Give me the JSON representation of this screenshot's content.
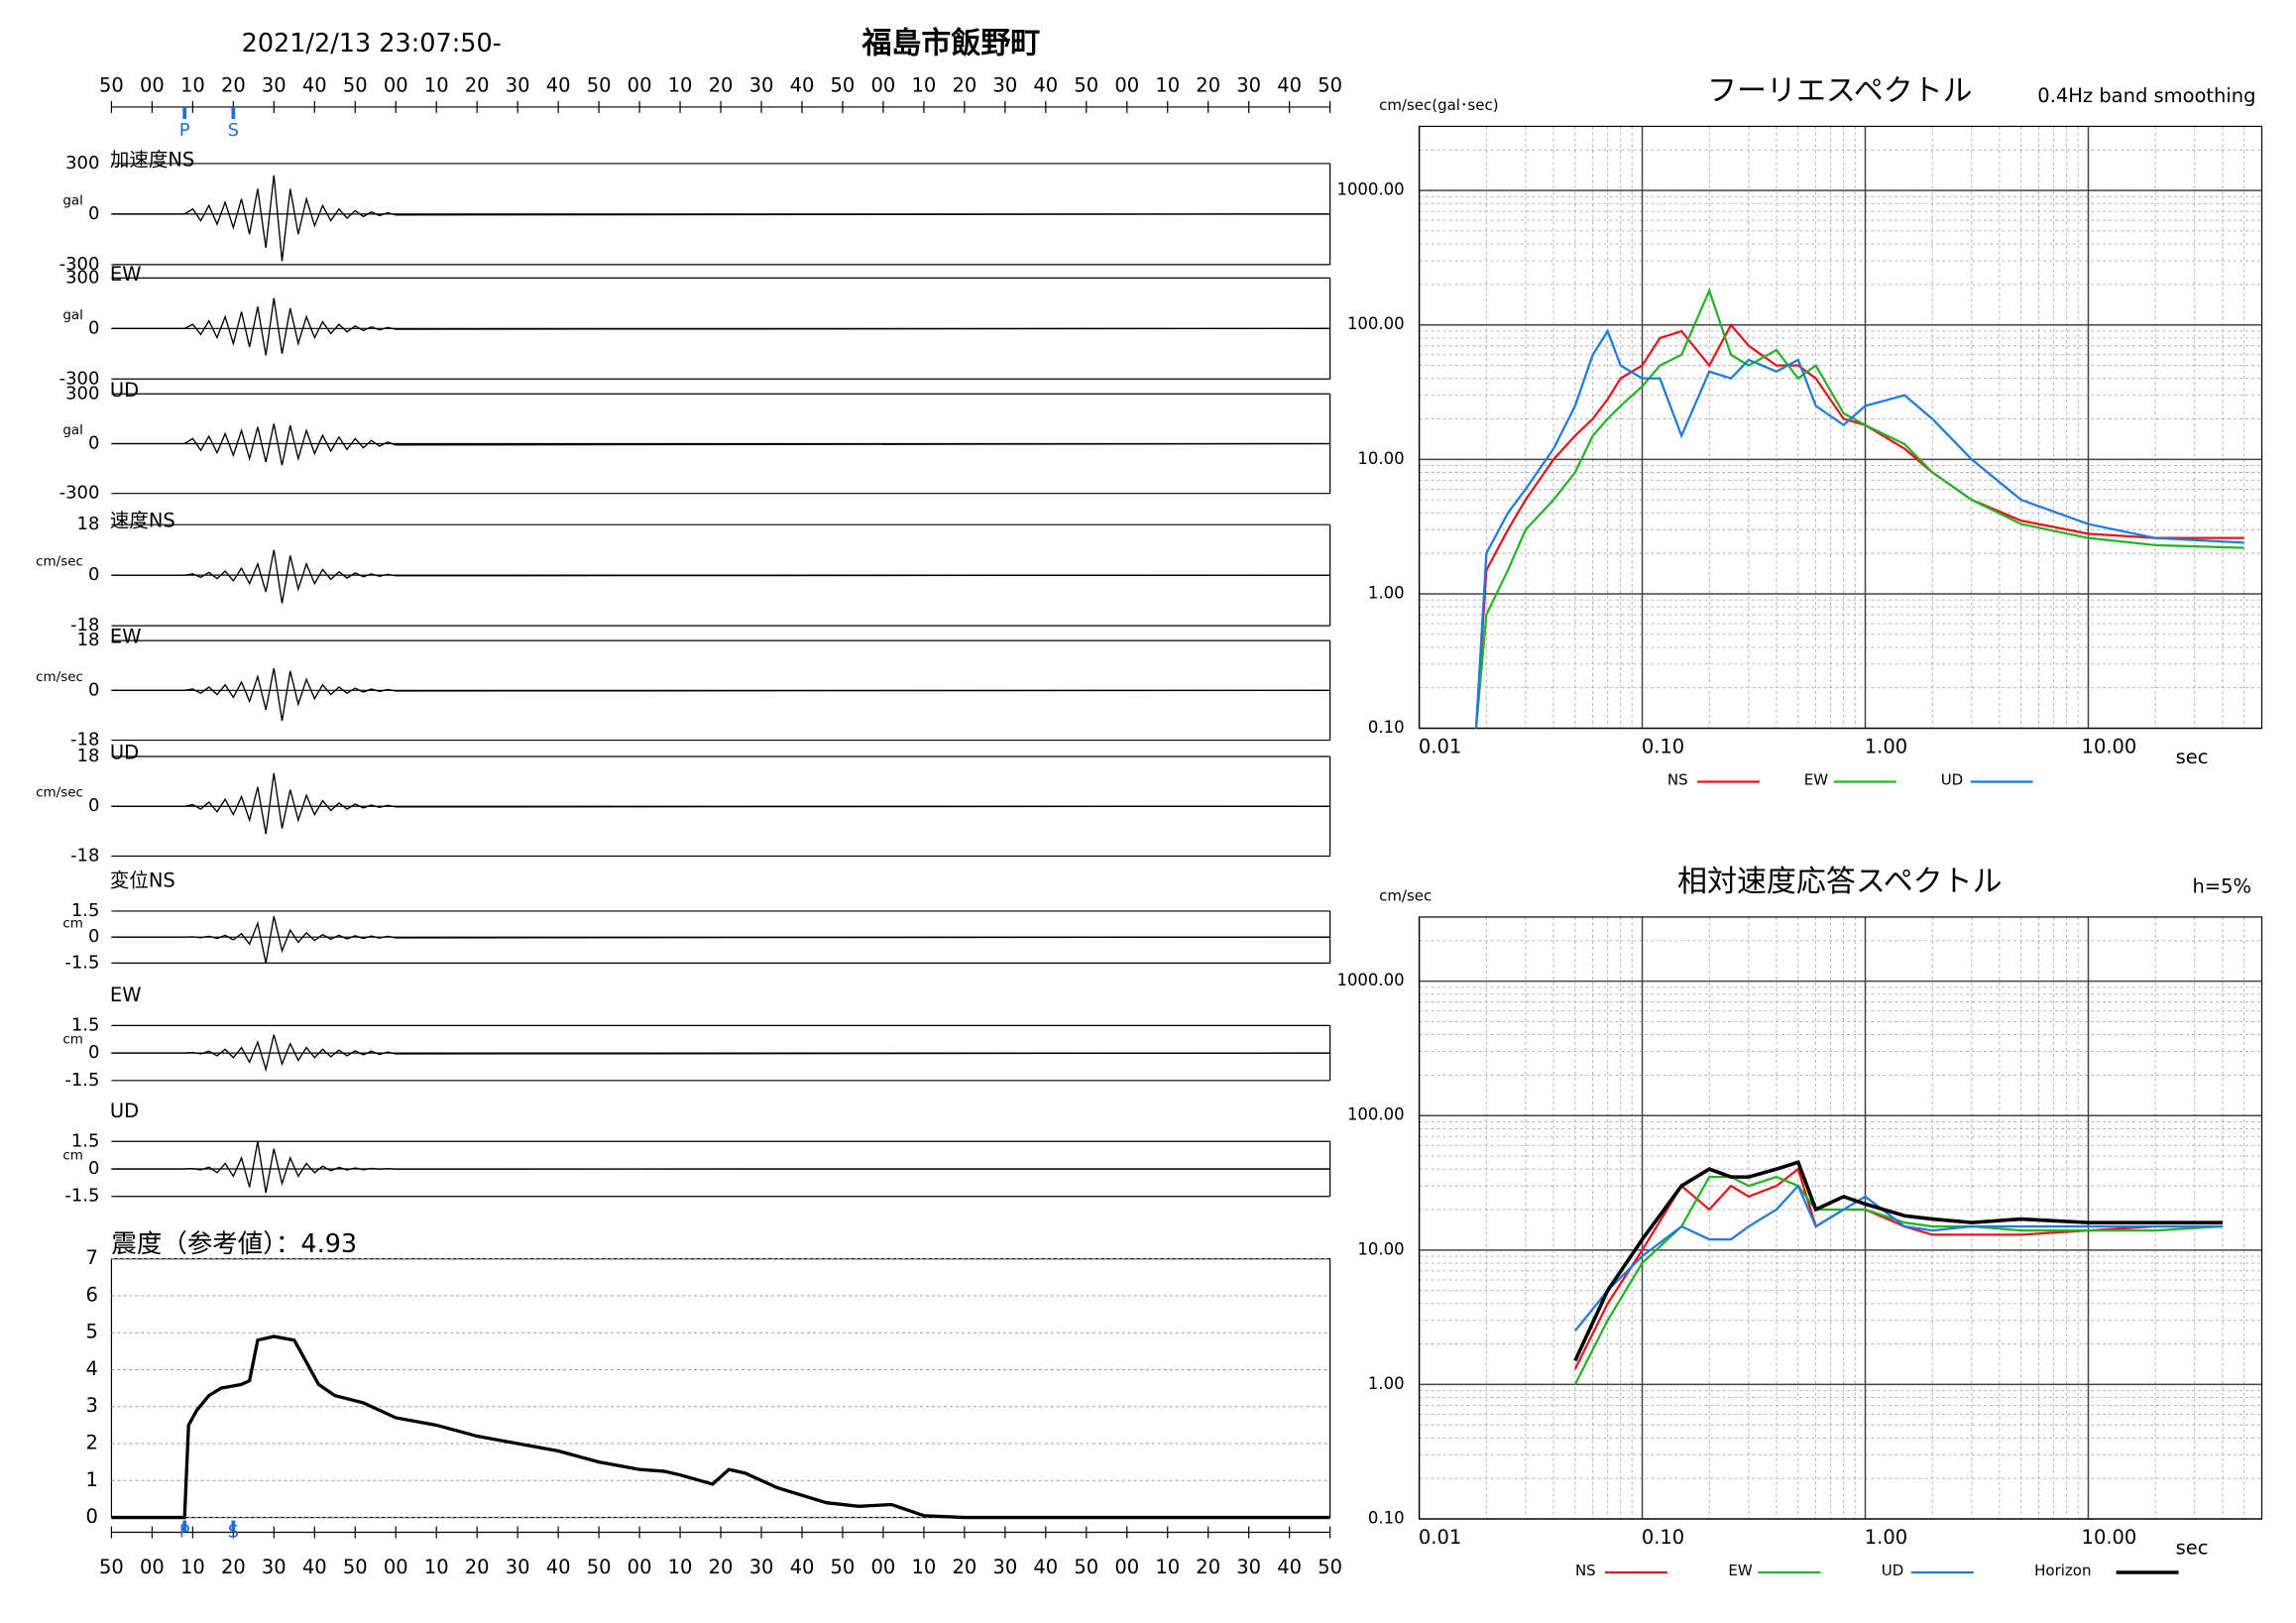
{
  "chart_data": [
    {
      "type": "waveform",
      "title": "2021/2/13 23:07:50-",
      "subtitle": "福島市飯野町",
      "color": "#000000",
      "xlim": [
        0,
        300
      ],
      "xticks": [
        {
          "value": 0,
          "label": "50"
        },
        {
          "value": 10,
          "label": "00"
        },
        {
          "value": 20,
          "label": "10"
        },
        {
          "value": 30,
          "label": "20"
        },
        {
          "value": 40,
          "label": "30"
        },
        {
          "value": 50,
          "label": "40"
        },
        {
          "value": 60,
          "label": "50"
        },
        {
          "value": 70,
          "label": "00"
        },
        {
          "value": 80,
          "label": "10"
        },
        {
          "value": 90,
          "label": "20"
        },
        {
          "value": 100,
          "label": "30"
        },
        {
          "value": 110,
          "label": "40"
        },
        {
          "value": 120,
          "label": "50"
        },
        {
          "value": 130,
          "label": "00"
        },
        {
          "value": 140,
          "label": "10"
        },
        {
          "value": 150,
          "label": "20"
        },
        {
          "value": 160,
          "label": "30"
        },
        {
          "value": 170,
          "label": "40"
        },
        {
          "value": 180,
          "label": "50"
        },
        {
          "value": 190,
          "label": "00"
        },
        {
          "value": 200,
          "label": "10"
        },
        {
          "value": 210,
          "label": "20"
        },
        {
          "value": 220,
          "label": "30"
        },
        {
          "value": 230,
          "label": "40"
        },
        {
          "value": 240,
          "label": "50"
        },
        {
          "value": 250,
          "label": "00"
        },
        {
          "value": 260,
          "label": "10"
        },
        {
          "value": 270,
          "label": "20"
        },
        {
          "value": 280,
          "label": "30"
        },
        {
          "value": 290,
          "label": "40"
        },
        {
          "value": 300,
          "label": "50"
        }
      ],
      "phases": [
        {
          "label": "P",
          "value": 18
        },
        {
          "label": "S",
          "value": 30
        }
      ],
      "x": [
        0,
        18,
        20,
        22,
        24,
        26,
        28,
        30,
        32,
        34,
        36,
        38,
        40,
        42,
        44,
        46,
        48,
        50,
        52,
        54,
        56,
        58,
        60,
        62,
        64,
        66,
        68,
        70,
        300
      ],
      "series": [
        {
          "name": "加速度NS",
          "unit": "gal",
          "ylim": [
            -300,
            300
          ],
          "yticks": [
            -300,
            0,
            300
          ],
          "values": [
            0,
            0,
            30,
            -40,
            50,
            -60,
            70,
            -80,
            90,
            -120,
            150,
            -200,
            230,
            -280,
            150,
            -120,
            90,
            -70,
            50,
            -40,
            30,
            -25,
            20,
            -15,
            12,
            -10,
            8,
            -5,
            0
          ]
        },
        {
          "name": "EW",
          "unit": "gal",
          "ylim": [
            -300,
            300
          ],
          "yticks": [
            -300,
            0,
            300
          ],
          "values": [
            0,
            0,
            25,
            -35,
            45,
            -55,
            70,
            -90,
            100,
            -110,
            130,
            -160,
            180,
            -150,
            120,
            -90,
            70,
            -55,
            40,
            -30,
            25,
            -20,
            15,
            -12,
            10,
            -8,
            6,
            -4,
            0
          ]
        },
        {
          "name": "UD",
          "unit": "gal",
          "ylim": [
            -300,
            300
          ],
          "yticks": [
            -300,
            0,
            300
          ],
          "values": [
            0,
            0,
            30,
            -40,
            45,
            -55,
            60,
            -70,
            80,
            -90,
            100,
            -110,
            120,
            -130,
            110,
            -90,
            80,
            -60,
            50,
            -45,
            40,
            -35,
            30,
            -25,
            20,
            -15,
            10,
            -8,
            0
          ]
        },
        {
          "name": "速度NS",
          "unit": "cm/sec",
          "ylim": [
            -18,
            18
          ],
          "yticks": [
            -18,
            0,
            18
          ],
          "values": [
            0,
            0,
            0.5,
            -0.8,
            1,
            -1.2,
            1.5,
            -2,
            2.5,
            -3,
            4,
            -6,
            9,
            -10,
            7,
            -5,
            4,
            -3,
            2,
            -1.5,
            1.2,
            -1,
            0.8,
            -0.6,
            0.5,
            -0.4,
            0.3,
            -0.2,
            0
          ]
        },
        {
          "name": "EW",
          "unit": "cm/sec",
          "ylim": [
            -18,
            18
          ],
          "yticks": [
            -18,
            0,
            18
          ],
          "values": [
            0,
            0,
            0.5,
            -1,
            1.2,
            -1.5,
            2,
            -2.5,
            3,
            -4,
            5,
            -7,
            8,
            -11,
            7,
            -5,
            4,
            -3,
            2,
            -1.5,
            1.2,
            -1,
            0.8,
            -0.6,
            0.5,
            -0.4,
            0.3,
            -0.2,
            0
          ]
        },
        {
          "name": "UD",
          "unit": "cm/sec",
          "ylim": [
            -18,
            18
          ],
          "yticks": [
            -18,
            0,
            18
          ],
          "values": [
            0,
            0,
            0.6,
            -1,
            1.5,
            -2,
            2.5,
            -3,
            3.5,
            -5,
            7,
            -10,
            12,
            -8,
            6,
            -5,
            4,
            -3,
            2,
            -1.5,
            1.2,
            -1,
            0.8,
            -0.6,
            0.5,
            -0.4,
            0.3,
            -0.2,
            0
          ]
        },
        {
          "name": "変位NS",
          "unit": "cm",
          "ylim": [
            -1.5,
            1.5
          ],
          "yticks": [
            -1.5,
            0,
            1.5
          ],
          "values": [
            0,
            0,
            0.02,
            -0.03,
            0.05,
            -0.08,
            0.1,
            -0.15,
            0.2,
            -0.4,
            0.8,
            -1.5,
            1.2,
            -0.8,
            0.4,
            -0.3,
            0.25,
            -0.2,
            0.15,
            -0.12,
            0.1,
            -0.1,
            0.08,
            -0.08,
            0.06,
            -0.06,
            0.05,
            -0.04,
            0
          ]
        },
        {
          "name": "EW",
          "unit": "cm",
          "ylim": [
            -1.5,
            1.5
          ],
          "yticks": [
            -1.5,
            0,
            1.5
          ],
          "values": [
            0,
            0,
            0.03,
            -0.05,
            0.1,
            -0.15,
            0.2,
            -0.25,
            0.3,
            -0.5,
            0.6,
            -0.9,
            1.0,
            -0.6,
            0.5,
            -0.4,
            0.3,
            -0.25,
            0.2,
            -0.2,
            0.15,
            -0.15,
            0.12,
            -0.1,
            0.1,
            -0.08,
            0.06,
            -0.05,
            0
          ]
        },
        {
          "name": "UD",
          "unit": "cm",
          "ylim": [
            -1.5,
            1.5
          ],
          "yticks": [
            -1.5,
            0,
            1.5
          ],
          "values": [
            0,
            0,
            0.02,
            -0.05,
            0.1,
            -0.2,
            0.3,
            -0.4,
            0.6,
            -1.0,
            1.5,
            -1.3,
            1.1,
            -0.8,
            0.6,
            -0.4,
            0.3,
            -0.2,
            0.15,
            -0.1,
            0.08,
            -0.06,
            0.05,
            -0.04,
            0.03,
            -0.02,
            0.02,
            -0.01,
            0
          ]
        }
      ]
    },
    {
      "type": "line",
      "title": "震度（参考値）：4.93",
      "color": "#000000",
      "grid": true,
      "xlim": [
        0,
        300
      ],
      "xticks": [
        {
          "value": 0,
          "label": "50"
        },
        {
          "value": 10,
          "label": "00"
        },
        {
          "value": 20,
          "label": "10"
        },
        {
          "value": 30,
          "label": "20"
        },
        {
          "value": 40,
          "label": "30"
        },
        {
          "value": 50,
          "label": "40"
        },
        {
          "value": 60,
          "label": "50"
        },
        {
          "value": 70,
          "label": "00"
        },
        {
          "value": 80,
          "label": "10"
        },
        {
          "value": 90,
          "label": "20"
        },
        {
          "value": 100,
          "label": "30"
        },
        {
          "value": 110,
          "label": "40"
        },
        {
          "value": 120,
          "label": "50"
        },
        {
          "value": 130,
          "label": "00"
        },
        {
          "value": 140,
          "label": "10"
        },
        {
          "value": 150,
          "label": "20"
        },
        {
          "value": 160,
          "label": "30"
        },
        {
          "value": 170,
          "label": "40"
        },
        {
          "value": 180,
          "label": "50"
        },
        {
          "value": 190,
          "label": "00"
        },
        {
          "value": 200,
          "label": "10"
        },
        {
          "value": 210,
          "label": "20"
        },
        {
          "value": 220,
          "label": "30"
        },
        {
          "value": 230,
          "label": "40"
        },
        {
          "value": 240,
          "label": "50"
        },
        {
          "value": 250,
          "label": "00"
        },
        {
          "value": 260,
          "label": "10"
        },
        {
          "value": 270,
          "label": "20"
        },
        {
          "value": 280,
          "label": "30"
        },
        {
          "value": 290,
          "label": "40"
        },
        {
          "value": 300,
          "label": "50"
        }
      ],
      "phases": [
        {
          "label": "P",
          "value": 18
        },
        {
          "label": "S",
          "value": 30
        }
      ],
      "ylim": [
        0,
        7
      ],
      "yticks": [
        0,
        1,
        2,
        3,
        4,
        5,
        6,
        7
      ],
      "x": [
        0,
        18,
        19,
        21,
        24,
        27,
        32,
        34,
        36,
        40,
        45,
        47,
        51,
        55,
        62,
        70,
        80,
        90,
        100,
        110,
        120,
        130,
        136,
        140,
        148,
        152,
        156,
        164,
        170,
        176,
        184,
        192,
        196,
        200,
        210,
        300
      ],
      "values": [
        0,
        0,
        2.5,
        2.9,
        3.3,
        3.5,
        3.6,
        3.7,
        4.8,
        4.9,
        4.8,
        4.4,
        3.6,
        3.3,
        3.1,
        2.7,
        2.5,
        2.2,
        2.0,
        1.8,
        1.5,
        1.3,
        1.25,
        1.15,
        0.9,
        1.3,
        1.2,
        0.8,
        0.6,
        0.4,
        0.3,
        0.35,
        0.2,
        0.05,
        0,
        0
      ]
    },
    {
      "type": "loglog",
      "title": "フーリエスペクトル",
      "subtitle": "0.4Hz band smoothing",
      "ylabel": "cm/sec(gal･sec)",
      "xlabel": "sec",
      "log_scale": true,
      "grid": true,
      "xlim": [
        0.01,
        60
      ],
      "ylim": [
        0.1,
        3000
      ],
      "xticks": [
        {
          "value": 0.01,
          "label": "0.01"
        },
        {
          "value": 0.1,
          "label": "0.10"
        },
        {
          "value": 1,
          "label": "1.00"
        },
        {
          "value": 10,
          "label": "10.00"
        }
      ],
      "yticks": [
        {
          "value": 0.1,
          "label": "0.10"
        },
        {
          "value": 1,
          "label": "1.00"
        },
        {
          "value": 10,
          "label": "10.00"
        },
        {
          "value": 100,
          "label": "100.00"
        },
        {
          "value": 1000,
          "label": "1000.00"
        }
      ],
      "x": [
        0.018,
        0.02,
        0.025,
        0.03,
        0.04,
        0.05,
        0.06,
        0.07,
        0.08,
        0.1,
        0.12,
        0.15,
        0.2,
        0.25,
        0.3,
        0.4,
        0.5,
        0.6,
        0.8,
        1,
        1.5,
        2,
        3,
        5,
        10,
        20,
        50
      ],
      "series": [
        {
          "name": "NS",
          "color": "#e8141c",
          "values": [
            0.1,
            1.5,
            3,
            5,
            10,
            15,
            20,
            28,
            40,
            50,
            80,
            90,
            50,
            100,
            70,
            50,
            50,
            40,
            20,
            18,
            12,
            8,
            5,
            3.5,
            2.8,
            2.6,
            2.6
          ]
        },
        {
          "name": "EW",
          "color": "#22b422",
          "values": [
            0.1,
            0.7,
            1.5,
            3,
            5,
            8,
            15,
            20,
            25,
            35,
            50,
            60,
            180,
            60,
            50,
            65,
            40,
            50,
            22,
            18,
            13,
            8,
            5,
            3.3,
            2.6,
            2.3,
            2.2
          ]
        },
        {
          "name": "UD",
          "color": "#1c7be0",
          "values": [
            0.1,
            2,
            4,
            6,
            12,
            25,
            60,
            90,
            50,
            40,
            40,
            15,
            45,
            40,
            55,
            45,
            55,
            25,
            18,
            25,
            30,
            20,
            10,
            5,
            3.3,
            2.6,
            2.4
          ]
        }
      ]
    },
    {
      "type": "loglog",
      "title": "相対速度応答スペクトル",
      "subtitle": "h=5%",
      "ylabel": "cm/sec",
      "xlabel": "sec",
      "log_scale": true,
      "grid": true,
      "xlim": [
        0.01,
        60
      ],
      "ylim": [
        0.1,
        3000
      ],
      "xticks": [
        {
          "value": 0.01,
          "label": "0.01"
        },
        {
          "value": 0.1,
          "label": "0.10"
        },
        {
          "value": 1,
          "label": "1.00"
        },
        {
          "value": 10,
          "label": "10.00"
        }
      ],
      "yticks": [
        {
          "value": 0.1,
          "label": "0.10"
        },
        {
          "value": 1,
          "label": "1.00"
        },
        {
          "value": 10,
          "label": "10.00"
        },
        {
          "value": 100,
          "label": "100.00"
        },
        {
          "value": 1000,
          "label": "1000.00"
        }
      ],
      "x": [
        0.05,
        0.07,
        0.1,
        0.15,
        0.2,
        0.25,
        0.3,
        0.4,
        0.5,
        0.6,
        0.8,
        1,
        1.5,
        2,
        3,
        5,
        10,
        20,
        40
      ],
      "series": [
        {
          "name": "NS",
          "color": "#e8141c",
          "values": [
            1.3,
            4,
            10,
            30,
            20,
            30,
            25,
            30,
            40,
            15,
            20,
            20,
            15,
            13,
            13,
            13,
            14,
            15,
            15
          ]
        },
        {
          "name": "EW",
          "color": "#22b422",
          "values": [
            1.0,
            3,
            8,
            15,
            35,
            35,
            30,
            35,
            30,
            20,
            20,
            20,
            16,
            15,
            15,
            14,
            14,
            14,
            15
          ]
        },
        {
          "name": "UD",
          "color": "#1c7be0",
          "values": [
            2.5,
            5,
            9,
            15,
            12,
            12,
            15,
            20,
            30,
            15,
            20,
            25,
            15,
            14,
            15,
            15,
            15,
            15,
            15
          ]
        },
        {
          "name": "Horizon",
          "color": "#000000",
          "values": [
            1.5,
            5,
            12,
            30,
            40,
            35,
            35,
            40,
            45,
            20,
            25,
            22,
            18,
            17,
            16,
            17,
            16,
            16,
            16
          ]
        }
      ]
    }
  ]
}
